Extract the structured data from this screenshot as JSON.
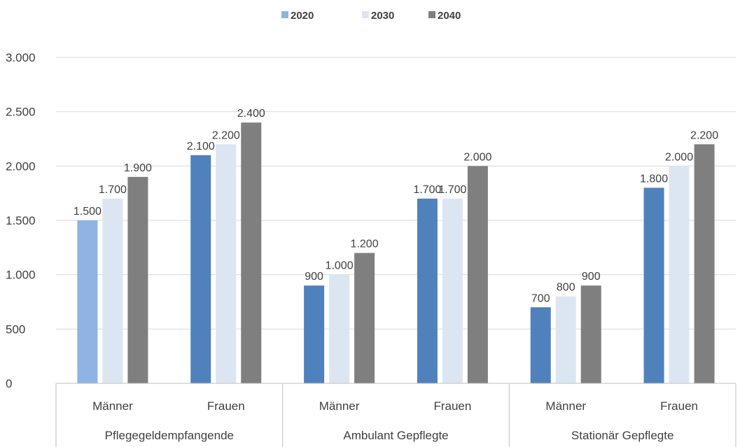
{
  "chart_data": {
    "type": "bar",
    "groups": [
      {
        "label": "Pflegegeldempfangende",
        "categories": [
          "Männer",
          "Frauen"
        ]
      },
      {
        "label": "Ambulant Gepflegte",
        "categories": [
          "Männer",
          "Frauen"
        ]
      },
      {
        "label": "Stationär Gepflegte",
        "categories": [
          "Männer",
          "Frauen"
        ]
      }
    ],
    "categories": [
      "Männer",
      "Frauen",
      "Männer",
      "Frauen",
      "Männer",
      "Frauen"
    ],
    "series": [
      {
        "name": "2020",
        "color": "#4f81bd",
        "values": [
          1500,
          2100,
          900,
          1700,
          700,
          1800
        ],
        "value_labels": [
          "1.500",
          "2.100",
          "900",
          "1.700",
          "700",
          "1.800"
        ]
      },
      {
        "name": "2030",
        "color": "#dce6f2",
        "values": [
          1700,
          2200,
          1000,
          1700,
          800,
          2000
        ],
        "value_labels": [
          "1.700",
          "2.200",
          "1.000",
          "1.700",
          "800",
          "2.000"
        ]
      },
      {
        "name": "2040",
        "color": "#7f7f7f",
        "values": [
          1900,
          2400,
          1200,
          2000,
          900,
          2200
        ],
        "value_labels": [
          "1.900",
          "2.400",
          "1.200",
          "2.000",
          "900",
          "2.200"
        ]
      }
    ],
    "highlight": {
      "series_index": 0,
      "category_index": 0,
      "color": "#8db4e2"
    },
    "legend_swatch_colors": [
      "#8db4e2",
      "#dce6f2",
      "#7f7f7f"
    ],
    "yticks": [
      0,
      500,
      1000,
      1500,
      2000,
      2500,
      3000
    ],
    "ytick_labels": [
      "0",
      "500",
      "1.000",
      "1.500",
      "2.000",
      "2.500",
      "3.000"
    ],
    "ylim": [
      0,
      3000
    ],
    "grid": true,
    "legend_position": "top-center",
    "colors": {
      "grid": "#d9d9d9",
      "axis": "#bfbfbf",
      "text": "#404040"
    }
  }
}
